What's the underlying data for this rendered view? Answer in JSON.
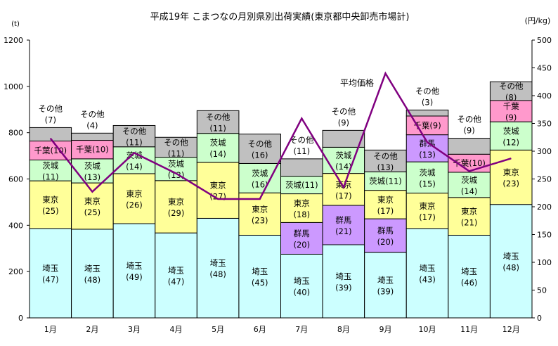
{
  "chart_data": {
    "type": "bar",
    "stacked": true,
    "title": "平成19年 こまつなの月別県別出荷実績(東京都中央卸売市場計)",
    "ylabel": "(t)",
    "y2label": "(円/kg)",
    "ylim": [
      0,
      1200
    ],
    "y2lim": [
      0,
      500
    ],
    "yticks": [
      0,
      200,
      400,
      600,
      800,
      1000,
      1200
    ],
    "y2ticks": [
      0,
      50,
      100,
      150,
      200,
      250,
      300,
      350,
      400,
      450,
      500
    ],
    "categories": [
      "1月",
      "2月",
      "3月",
      "4月",
      "5月",
      "6月",
      "7月",
      "8月",
      "9月",
      "10月",
      "11月",
      "12月"
    ],
    "colors": {
      "埼玉": "#CCFFFF",
      "群馬": "#CC99FF",
      "東京": "#FFFF99",
      "茨城": "#CCFFCC",
      "千葉": "#FF99CC",
      "その他": "#C0C0C0",
      "line": "#800080"
    },
    "bars": [
      {
        "segments": [
          {
            "name": "埼玉",
            "value": 386,
            "pct": 47
          },
          {
            "name": "東京",
            "value": 206,
            "pct": 25
          },
          {
            "name": "茨城",
            "value": 90,
            "pct": 11
          },
          {
            "name": "千葉",
            "value": 82,
            "pct": 10,
            "inline": true
          },
          {
            "name": "その他",
            "value": 58,
            "pct": 7,
            "outside": true
          }
        ]
      },
      {
        "segments": [
          {
            "name": "埼玉",
            "value": 383,
            "pct": 48
          },
          {
            "name": "東京",
            "value": 200,
            "pct": 25
          },
          {
            "name": "茨城",
            "value": 104,
            "pct": 13
          },
          {
            "name": "千葉",
            "value": 80,
            "pct": 10,
            "inline": true
          },
          {
            "name": "その他",
            "value": 31,
            "pct": 4,
            "outside": true
          }
        ]
      },
      {
        "segments": [
          {
            "name": "埼玉",
            "value": 407,
            "pct": 49
          },
          {
            "name": "東京",
            "value": 216,
            "pct": 26
          },
          {
            "name": "茨城",
            "value": 116,
            "pct": 14
          },
          {
            "name": "その他",
            "value": 92,
            "pct": 11
          }
        ]
      },
      {
        "segments": [
          {
            "name": "埼玉",
            "value": 367,
            "pct": 47
          },
          {
            "name": "東京",
            "value": 226,
            "pct": 29
          },
          {
            "name": "茨城",
            "value": 101,
            "pct": 13
          },
          {
            "name": "その他",
            "value": 86,
            "pct": 11
          }
        ]
      },
      {
        "segments": [
          {
            "name": "埼玉",
            "value": 430,
            "pct": 48
          },
          {
            "name": "東京",
            "value": 242,
            "pct": 27
          },
          {
            "name": "茨城",
            "value": 125,
            "pct": 14
          },
          {
            "name": "その他",
            "value": 98,
            "pct": 11
          }
        ]
      },
      {
        "segments": [
          {
            "name": "埼玉",
            "value": 357,
            "pct": 45
          },
          {
            "name": "東京",
            "value": 183,
            "pct": 23
          },
          {
            "name": "茨城",
            "value": 127,
            "pct": 16
          },
          {
            "name": "その他",
            "value": 127,
            "pct": 16
          }
        ]
      },
      {
        "segments": [
          {
            "name": "埼玉",
            "value": 275,
            "pct": 40
          },
          {
            "name": "群馬",
            "value": 137,
            "pct": 20
          },
          {
            "name": "東京",
            "value": 124,
            "pct": 18
          },
          {
            "name": "茨城",
            "value": 76,
            "pct": 11,
            "inline": true
          },
          {
            "name": "その他",
            "value": 75,
            "pct": 11,
            "outside": true
          }
        ]
      },
      {
        "segments": [
          {
            "name": "埼玉",
            "value": 316,
            "pct": 39
          },
          {
            "name": "群馬",
            "value": 170,
            "pct": 21
          },
          {
            "name": "東京",
            "value": 138,
            "pct": 17
          },
          {
            "name": "茨城",
            "value": 113,
            "pct": 14
          },
          {
            "name": "その他",
            "value": 73,
            "pct": 9,
            "outside": true
          }
        ]
      },
      {
        "segments": [
          {
            "name": "埼玉",
            "value": 283,
            "pct": 39
          },
          {
            "name": "群馬",
            "value": 145,
            "pct": 20
          },
          {
            "name": "東京",
            "value": 123,
            "pct": 17
          },
          {
            "name": "茨城",
            "value": 80,
            "pct": 11,
            "inline": true
          },
          {
            "name": "その他",
            "value": 94,
            "pct": 13
          }
        ]
      },
      {
        "segments": [
          {
            "name": "埼玉",
            "value": 386,
            "pct": 43
          },
          {
            "name": "東京",
            "value": 153,
            "pct": 17
          },
          {
            "name": "茨城",
            "value": 135,
            "pct": 15
          },
          {
            "name": "群馬",
            "value": 117,
            "pct": 13
          },
          {
            "name": "千葉",
            "value": 81,
            "pct": 9,
            "inline": true
          },
          {
            "name": "その他",
            "value": 26,
            "pct": 3,
            "outside": true
          }
        ]
      },
      {
        "segments": [
          {
            "name": "埼玉",
            "value": 357,
            "pct": 46
          },
          {
            "name": "東京",
            "value": 163,
            "pct": 21
          },
          {
            "name": "茨城",
            "value": 109,
            "pct": 14
          },
          {
            "name": "千葉",
            "value": 78,
            "pct": 10,
            "inline": true
          },
          {
            "name": "その他",
            "value": 69,
            "pct": 9,
            "outside": true
          }
        ]
      },
      {
        "segments": [
          {
            "name": "埼玉",
            "value": 490,
            "pct": 48
          },
          {
            "name": "東京",
            "value": 235,
            "pct": 23
          },
          {
            "name": "茨城",
            "value": 122,
            "pct": 12
          },
          {
            "name": "千葉",
            "value": 92,
            "pct": 9
          },
          {
            "name": "その他",
            "value": 81,
            "pct": 8
          }
        ]
      }
    ],
    "line": {
      "name": "平均価格",
      "axis": "right",
      "values": [
        323,
        227,
        297,
        260,
        214,
        214,
        359,
        235,
        440,
        316,
        264,
        287
      ]
    }
  }
}
